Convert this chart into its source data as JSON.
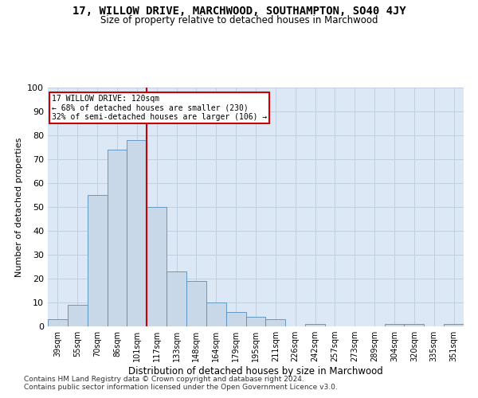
{
  "title_line1": "17, WILLOW DRIVE, MARCHWOOD, SOUTHAMPTON, SO40 4JY",
  "title_line2": "Size of property relative to detached houses in Marchwood",
  "xlabel": "Distribution of detached houses by size in Marchwood",
  "ylabel": "Number of detached properties",
  "categories": [
    "39sqm",
    "55sqm",
    "70sqm",
    "86sqm",
    "101sqm",
    "117sqm",
    "133sqm",
    "148sqm",
    "164sqm",
    "179sqm",
    "195sqm",
    "211sqm",
    "226sqm",
    "242sqm",
    "257sqm",
    "273sqm",
    "289sqm",
    "304sqm",
    "320sqm",
    "335sqm",
    "351sqm"
  ],
  "values": [
    3,
    9,
    55,
    74,
    78,
    50,
    23,
    19,
    10,
    6,
    4,
    3,
    0,
    1,
    0,
    0,
    0,
    1,
    1,
    0,
    1
  ],
  "bar_color": "#c8d8e8",
  "bar_edge_color": "#5090c0",
  "property_line_color": "#cc0000",
  "annotation_line1": "17 WILLOW DRIVE: 120sqm",
  "annotation_line2": "← 68% of detached houses are smaller (230)",
  "annotation_line3": "32% of semi-detached houses are larger (106) →",
  "annotation_box_color": "#cc0000",
  "ylim": [
    0,
    100
  ],
  "yticks": [
    0,
    10,
    20,
    30,
    40,
    50,
    60,
    70,
    80,
    90,
    100
  ],
  "grid_color": "#c0d0e0",
  "background_color": "#dce8f5",
  "footnote1": "Contains HM Land Registry data © Crown copyright and database right 2024.",
  "footnote2": "Contains public sector information licensed under the Open Government Licence v3.0."
}
